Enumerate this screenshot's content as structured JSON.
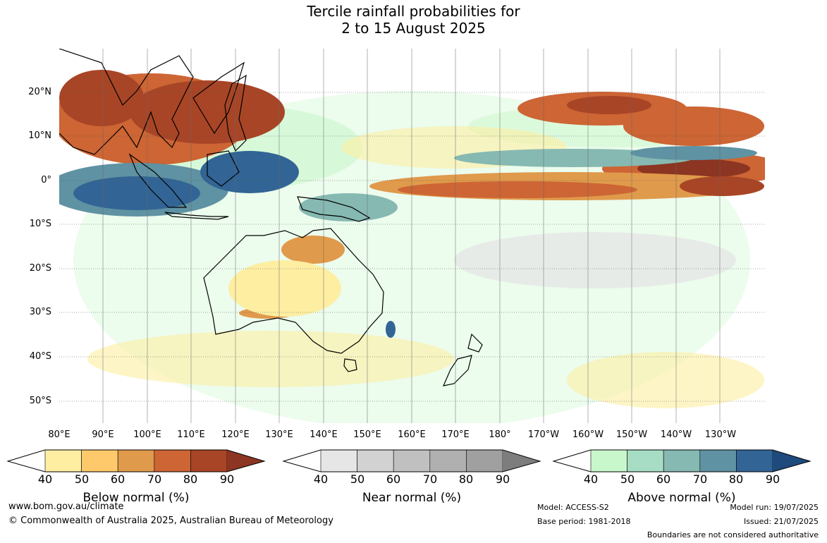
{
  "title": {
    "line1": "Tercile rainfall probabilities for",
    "line2": "2 to 15 August 2025"
  },
  "lat_labels": [
    "20°N",
    "10°N",
    "0°",
    "10°S",
    "20°S",
    "30°S",
    "40°S",
    "50°S"
  ],
  "lon_labels": [
    "80°E",
    "90°E",
    "100°E",
    "110°E",
    "120°E",
    "130°E",
    "140°E",
    "150°E",
    "160°E",
    "170°E",
    "180°",
    "170°W",
    "160°W",
    "150°W",
    "140°W",
    "130°W"
  ],
  "legends": [
    {
      "title": "Below normal (%)",
      "ticks": [
        "40",
        "50",
        "60",
        "70",
        "80",
        "90"
      ],
      "colors": [
        "#fdeea2",
        "#fdc96a",
        "#e09a4b",
        "#cd6534",
        "#a84526",
        "#8b3522"
      ]
    },
    {
      "title": "Near normal (%)",
      "ticks": [
        "40",
        "50",
        "60",
        "70",
        "80",
        "90"
      ],
      "colors": [
        "#e6e6e6",
        "#d2d2d2",
        "#c0c0c0",
        "#b0b0b0",
        "#a0a0a0",
        "#7d7d7d"
      ]
    },
    {
      "title": "Above normal (%)",
      "ticks": [
        "40",
        "50",
        "60",
        "70",
        "80",
        "90"
      ],
      "colors": [
        "#c9f7cc",
        "#a7ddc4",
        "#86b9b2",
        "#5f92a2",
        "#326595",
        "#1e4a7d"
      ]
    }
  ],
  "footer": {
    "website": "www.bom.gov.au/climate",
    "copyright": "© Commonwealth of Australia 2025, Australian Bureau of Meteorology",
    "model": "Model: ACCESS-S2",
    "base_period": "Base period: 1981-2018",
    "model_run": "Model run: 19/07/2025",
    "issued": "Issued: 21/07/2025",
    "disclaimer": "Boundaries are not considered authoritative"
  }
}
